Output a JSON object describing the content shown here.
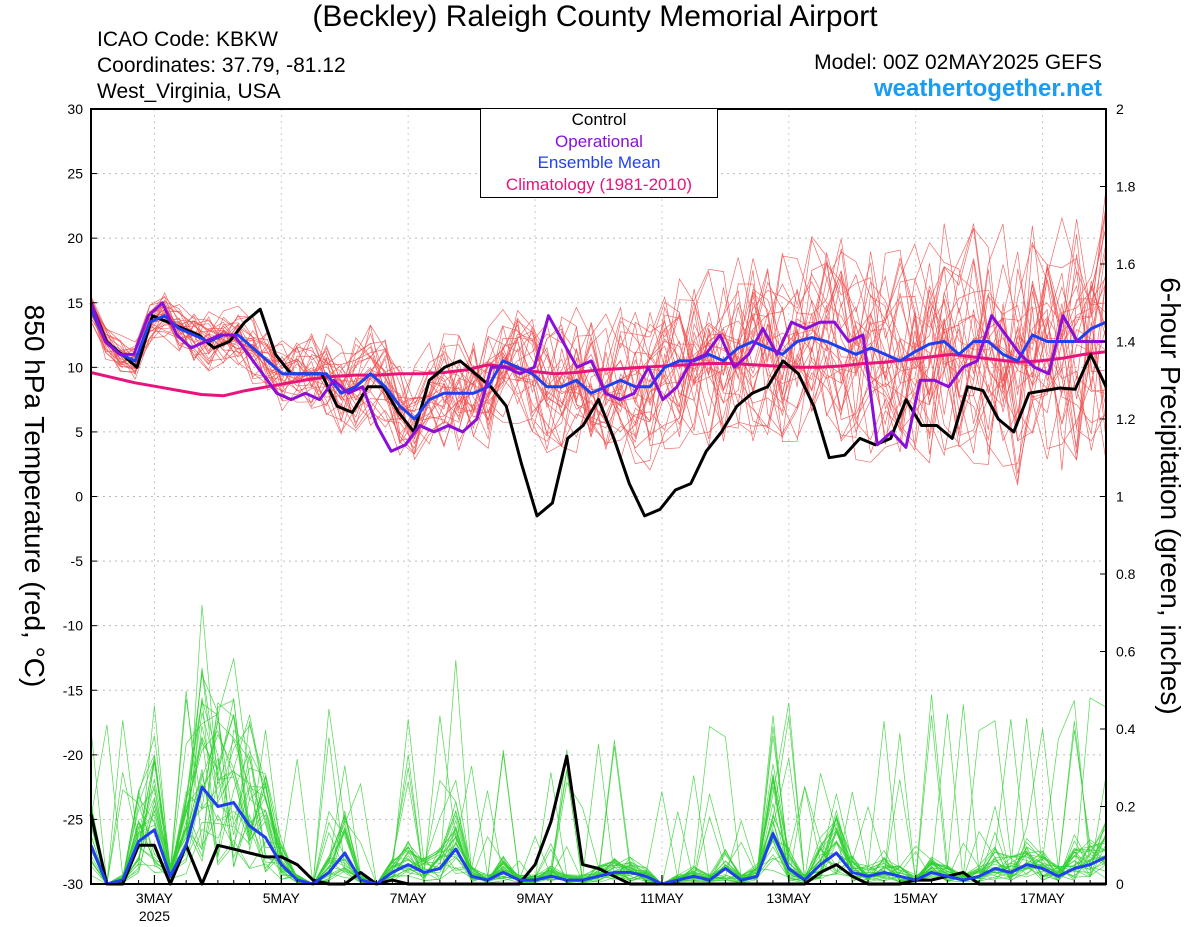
{
  "header": {
    "title": "(Beckley) Raleigh County Memorial Airport",
    "icao": "ICAO Code: KBKW",
    "coordinates": "Coordinates: 37.79, -81.12",
    "region": "West_Virginia, USA",
    "model": "Model: 00Z 02MAY2025 GEFS",
    "site": "weathertogether.net"
  },
  "colors": {
    "control": "#000000",
    "operational": "#8a10d8",
    "ensemble_mean": "#2040f0",
    "climatology": "#e8147c",
    "members_temperature": "#f05050",
    "members_precip": "#30d030",
    "site": "#1a9cf0"
  },
  "chart_data": {
    "type": "line",
    "title": "(Beckley) Raleigh County Memorial Airport",
    "ylabel": "850 hPa Temperature (red, °C)",
    "ylabel_right": "6-hour Precipitation (green, inches)",
    "ylim": [
      -30,
      30
    ],
    "ylim_right": [
      0,
      2
    ],
    "yticks": [
      "30",
      "25",
      "20",
      "15",
      "10",
      "5",
      "0",
      "-5",
      "-10",
      "-15",
      "-20",
      "-25",
      "-30"
    ],
    "yticks_right": [
      "2",
      "1.8",
      "1.6",
      "1.4",
      "1.2",
      "1",
      "0.8",
      "0.6",
      "0.4",
      "0.2",
      "0"
    ],
    "xticks": [
      "3MAY",
      "5MAY",
      "7MAY",
      "9MAY",
      "11MAY",
      "13MAY",
      "15MAY",
      "17MAY"
    ],
    "xtick_sub": "2025",
    "x_unit": "6-hour steps from 00Z 02MAY2025",
    "xlim": [
      0,
      64
    ],
    "legend": [
      "Control",
      "Operational",
      "Ensemble Mean",
      "Climatology (1981-2010)"
    ],
    "grid": true,
    "series": [
      {
        "name": "Control",
        "axis": "temperature",
        "values": [
          15,
          12,
          11,
          10,
          14,
          13.5,
          13,
          12.5,
          11.5,
          12,
          13.5,
          14.5,
          11,
          9.5,
          9.5,
          9.5,
          7,
          6.5,
          8.5,
          8.5,
          6.5,
          5,
          9,
          10,
          10.5,
          9.5,
          8.5,
          7,
          2.5,
          -1.5,
          -0.5,
          4.5,
          5.5,
          7.5,
          4.5,
          1,
          -1.5,
          -1,
          0.5,
          1,
          3.5,
          5,
          7,
          8,
          8.5,
          10.5,
          9.5,
          7,
          3,
          3.2,
          4.5,
          4,
          4.5,
          7.5,
          5.5,
          5.5,
          4.5,
          8.5,
          8.2,
          6,
          5,
          8,
          8.2,
          8.4,
          8.3,
          11,
          8.5
        ]
      },
      {
        "name": "Operational",
        "axis": "temperature",
        "values": [
          15,
          12,
          11,
          11,
          14,
          15,
          12.5,
          11.5,
          12,
          12.5,
          12.5,
          11,
          9.5,
          8,
          7.5,
          8,
          7.5,
          9,
          8,
          8.5,
          5.5,
          3.5,
          4,
          5.5,
          5,
          5.5,
          5,
          6,
          10,
          10,
          9.5,
          10,
          14,
          12,
          10,
          10.5,
          8,
          7.5,
          8,
          10,
          7.5,
          8.5,
          10.5,
          11,
          12.5,
          10,
          11,
          13,
          11,
          13.5,
          13,
          13.5,
          13.5,
          12,
          12.5,
          4,
          5,
          3.8,
          9,
          9,
          8.5,
          10,
          10.5,
          14,
          12.5,
          11,
          10,
          9.5,
          14,
          12,
          12,
          12
        ]
      },
      {
        "name": "Ensemble Mean",
        "axis": "temperature",
        "values": [
          14.5,
          12,
          11,
          10.5,
          13.5,
          14,
          13,
          12.5,
          12,
          12.5,
          12.5,
          11.5,
          10.5,
          9.5,
          9.5,
          9.5,
          9.5,
          8,
          8.5,
          9.5,
          8.5,
          7,
          6,
          7.5,
          8,
          8,
          8,
          8.5,
          10.5,
          10,
          9.5,
          8.5,
          8.5,
          9,
          8,
          8.5,
          9,
          8.5,
          8.5,
          10,
          10.5,
          10.5,
          11,
          10.5,
          11.5,
          12,
          11.5,
          11,
          12,
          12.3,
          12,
          11.5,
          11,
          11.5,
          11,
          10.5,
          11.2,
          11.8,
          12,
          11,
          12,
          12,
          11,
          10.5,
          12.5,
          12,
          12,
          12,
          13,
          13.5
        ]
      },
      {
        "name": "Climatology (1981-2010)",
        "axis": "temperature",
        "values": [
          9.6,
          9.2,
          8.8,
          8.5,
          8.2,
          7.9,
          7.8,
          8.2,
          8.5,
          8.8,
          9.1,
          9.3,
          9.4,
          9.4,
          9.5,
          9.5,
          9.6,
          9.8,
          10.2,
          10.0,
          9.7,
          9.5,
          9.6,
          9.8,
          9.9,
          10.0,
          10.1,
          10.2,
          10.3,
          10.3,
          10.2,
          10.1,
          10.0,
          10.0,
          10.1,
          10.3,
          10.4,
          10.6,
          10.8,
          11.0,
          10.8,
          10.6,
          10.4,
          10.5,
          10.7,
          11.0,
          11.2
        ]
      },
      {
        "name": "Control",
        "axis": "precipitation",
        "values": [
          0.18,
          0,
          0,
          0.1,
          0.1,
          0,
          0.1,
          0,
          0.1,
          0.09,
          0.08,
          0.07,
          0.07,
          0.05,
          0.01,
          0,
          0,
          0.03,
          0,
          0.01,
          0,
          0,
          0,
          0,
          0,
          0,
          0,
          0,
          0.05,
          0.16,
          0.33,
          0.05,
          0.04,
          0.02,
          0,
          0,
          0,
          0,
          0,
          0,
          0,
          0,
          0,
          0,
          0,
          0,
          0.03,
          0.05,
          0.02,
          0,
          0,
          0,
          0.01,
          0.01,
          0.02,
          0.03,
          0,
          0,
          0,
          0,
          0,
          0,
          0,
          0,
          0
        ]
      },
      {
        "name": "Ensemble Mean",
        "axis": "precipitation",
        "values": [
          0.1,
          0,
          0.01,
          0.11,
          0.14,
          0.02,
          0.1,
          0.25,
          0.2,
          0.21,
          0.15,
          0.12,
          0.05,
          0.01,
          0,
          0.03,
          0.08,
          0.01,
          0,
          0.03,
          0.05,
          0.03,
          0.04,
          0.09,
          0.02,
          0.01,
          0.03,
          0.01,
          0.01,
          0.02,
          0.01,
          0.01,
          0.02,
          0.03,
          0.03,
          0.02,
          0,
          0.01,
          0.02,
          0.01,
          0.04,
          0.01,
          0.02,
          0.13,
          0.04,
          0.01,
          0.05,
          0.08,
          0.03,
          0.02,
          0.03,
          0.02,
          0.01,
          0.03,
          0.02,
          0.01,
          0.02,
          0.04,
          0.03,
          0.05,
          0.04,
          0.02,
          0.04,
          0.05,
          0.07
        ]
      }
    ]
  }
}
